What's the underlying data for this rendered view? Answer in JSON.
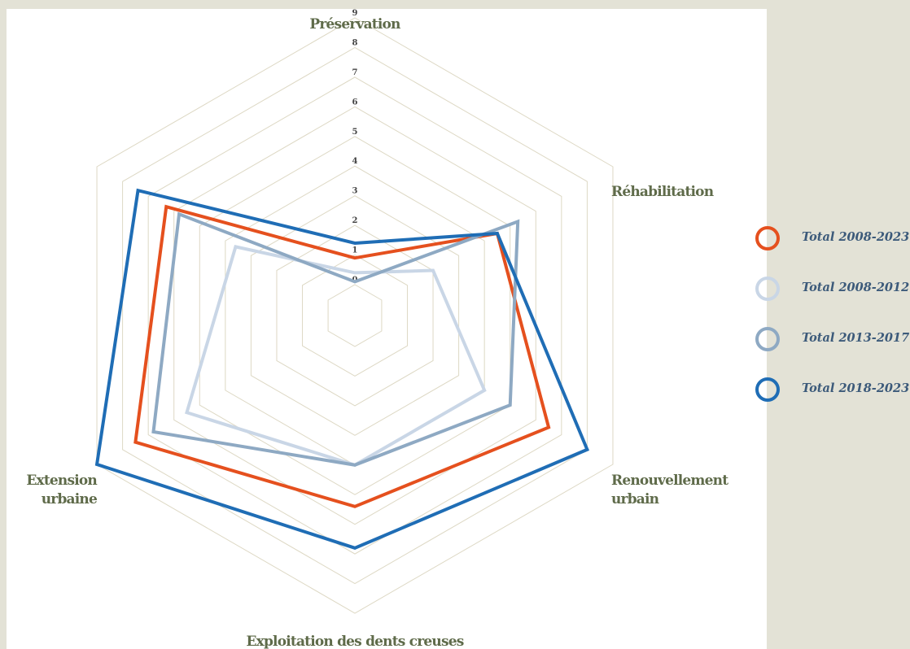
{
  "chart_data": {
    "type": "radar",
    "title": "",
    "axes": [
      [
        "Préservation"
      ],
      [
        "Réhabilitation"
      ],
      [
        "Renouvellement",
        "urbain"
      ],
      [
        "Exploitation des dents creuses"
      ],
      [
        "Extension",
        "urbaine"
      ],
      [
        ""
      ]
    ],
    "range": [
      0,
      9
    ],
    "tick_labels": [
      "0",
      "1",
      "2",
      "3",
      "4",
      "5",
      "6",
      "7",
      "8",
      "9"
    ],
    "grid": true,
    "legend_position": "right",
    "series": [
      {
        "name": "Total 2008-2023",
        "color": "#e5501e",
        "values": [
          0.9,
          4.5,
          6.5,
          5.4,
          7.5,
          6.3
        ]
      },
      {
        "name": "Total 2008-2012",
        "color": "#c9d6e6",
        "values": [
          0.4,
          2.0,
          4.0,
          4.0,
          5.5,
          3.6
        ]
      },
      {
        "name": "Total 2013-2017",
        "color": "#8ea9c3",
        "values": [
          0.1,
          5.3,
          5.0,
          4.0,
          6.8,
          5.8
        ]
      },
      {
        "name": "Total 2018-2023",
        "color": "#1f6db5",
        "values": [
          1.4,
          4.5,
          8.0,
          6.8,
          9.0,
          7.4
        ]
      }
    ]
  }
}
